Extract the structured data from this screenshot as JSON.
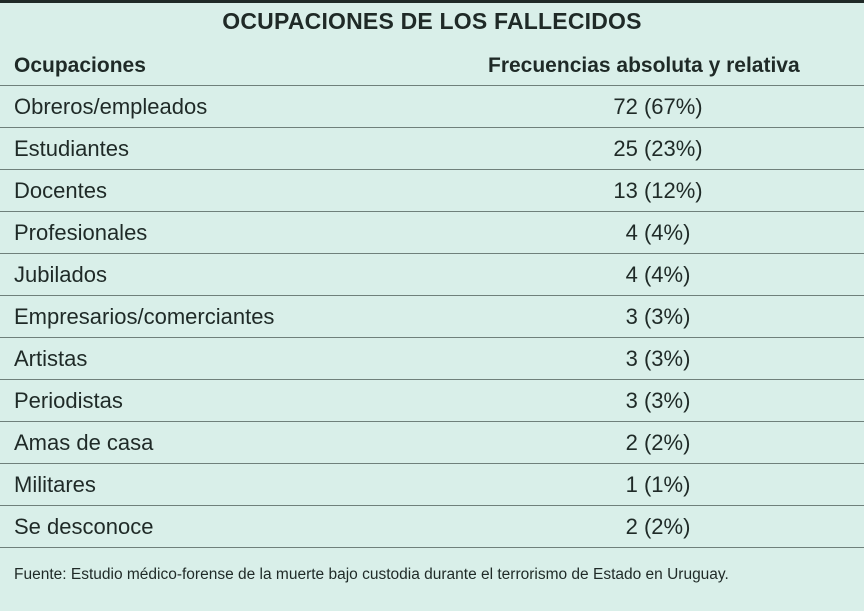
{
  "title": "OCUPACIONES DE LOS FALLECIDOS",
  "columns": {
    "occupation": "Ocupaciones",
    "frequency": "Frecuencias absoluta y relativa"
  },
  "rows": [
    {
      "occupation": "Obreros/empleados",
      "frequency": "72 (67%)"
    },
    {
      "occupation": "Estudiantes",
      "frequency": "25 (23%)"
    },
    {
      "occupation": "Docentes",
      "frequency": "13 (12%)"
    },
    {
      "occupation": "Profesionales",
      "frequency": "4 (4%)"
    },
    {
      "occupation": "Jubilados",
      "frequency": "4 (4%)"
    },
    {
      "occupation": "Empresarios/comerciantes",
      "frequency": "3 (3%)"
    },
    {
      "occupation": "Artistas",
      "frequency": "3 (3%)"
    },
    {
      "occupation": "Periodistas",
      "frequency": "3 (3%)"
    },
    {
      "occupation": "Amas de casa",
      "frequency": "2 (2%)"
    },
    {
      "occupation": "Militares",
      "frequency": "1 (1%)"
    },
    {
      "occupation": "Se desconoce",
      "frequency": "2 (2%)"
    }
  ],
  "source": "Fuente: Estudio médico-forense de la muerte bajo custodia durante el terrorismo de Estado en Uruguay.",
  "colors": {
    "background": "#d9efe9",
    "text": "#1f2a27",
    "rule": "#6f807b"
  }
}
